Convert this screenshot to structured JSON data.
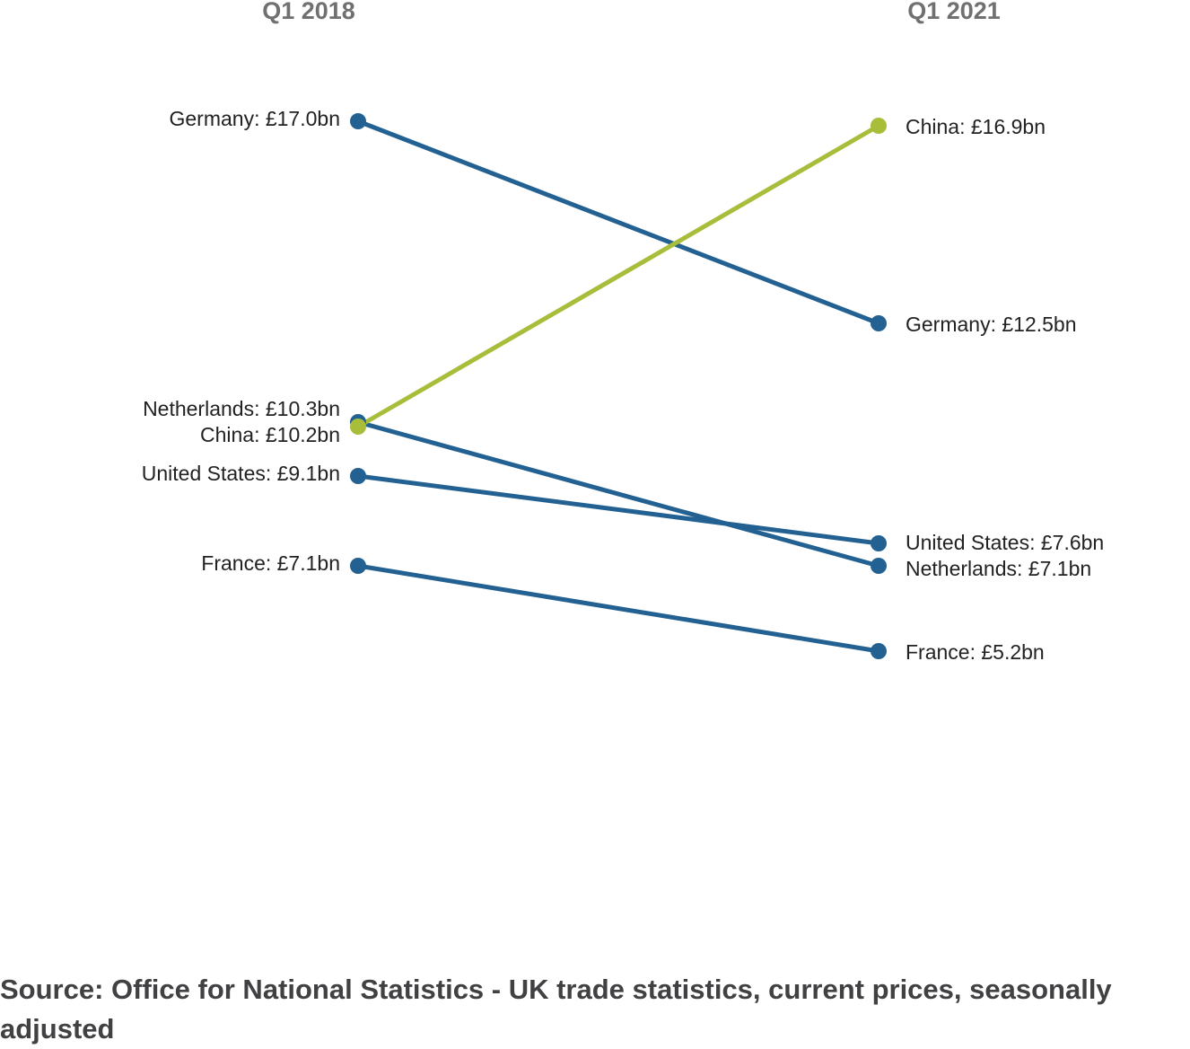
{
  "chart_data": {
    "type": "line",
    "subtype": "slope",
    "x": [
      "Q1 2018",
      "Q1 2021"
    ],
    "series": [
      {
        "name": "Germany",
        "values": [
          17.0,
          12.5
        ],
        "labels": [
          "Germany: £17.0bn",
          "Germany: £12.5bn"
        ],
        "color": "#236192"
      },
      {
        "name": "Netherlands",
        "values": [
          10.3,
          7.1
        ],
        "labels": [
          "Netherlands: £10.3bn",
          "Netherlands: £7.1bn"
        ],
        "color": "#236192"
      },
      {
        "name": "United States",
        "values": [
          9.1,
          7.6
        ],
        "labels": [
          "United States: £9.1bn",
          "United States: £7.6bn"
        ],
        "color": "#236192"
      },
      {
        "name": "France",
        "values": [
          7.1,
          5.2
        ],
        "labels": [
          "France: £7.1bn",
          "France: £5.2bn"
        ],
        "color": "#236192"
      },
      {
        "name": "China",
        "values": [
          10.2,
          16.9
        ],
        "labels": [
          "China: £10.2bn",
          "China: £16.9bn"
        ],
        "color": "#a8bd3a"
      }
    ],
    "ylim": [
      0,
      18
    ],
    "grid": false,
    "legend": "none"
  },
  "source": "Source: Office for National Statistics - UK trade statistics, current prices, seasonally adjusted"
}
